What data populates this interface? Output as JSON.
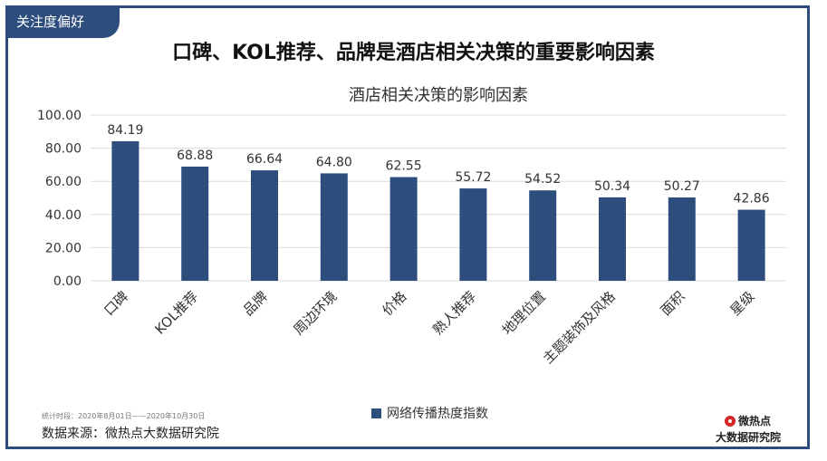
{
  "tag": "关注度偏好",
  "main_title": "口碑、KOL推荐、品牌是酒店相关决策的重要影响因素",
  "footnote": "统计时段：2020年8月01日——2020年10月30日",
  "source": "数据来源：微热点大数据研究院",
  "logo": {
    "line1": "微热点",
    "line2": "大数据研究院"
  },
  "colors": {
    "bar": "#2d4e7d",
    "frame": "#2d4e7d",
    "grid": "#d9d9d9"
  },
  "chart_data": {
    "type": "bar",
    "title": "酒店相关决策的影响因素",
    "categories": [
      "口碑",
      "KOL推荐",
      "品牌",
      "周边环境",
      "价格",
      "熟人推荐",
      "地理位置",
      "主题装饰及风格",
      "面积",
      "星级"
    ],
    "series": [
      {
        "name": "网络传播热度指数",
        "values": [
          84.19,
          68.88,
          66.64,
          64.8,
          62.55,
          55.72,
          54.52,
          50.34,
          50.27,
          42.86
        ]
      }
    ],
    "value_labels": [
      "84.19",
      "68.88",
      "66.64",
      "64.80",
      "62.55",
      "55.72",
      "54.52",
      "50.34",
      "50.27",
      "42.86"
    ],
    "yticks": [
      "0.00",
      "20.00",
      "40.00",
      "60.00",
      "80.00",
      "100.00"
    ],
    "ylim": [
      0,
      100
    ],
    "grid": true,
    "legend_position": "bottom"
  }
}
